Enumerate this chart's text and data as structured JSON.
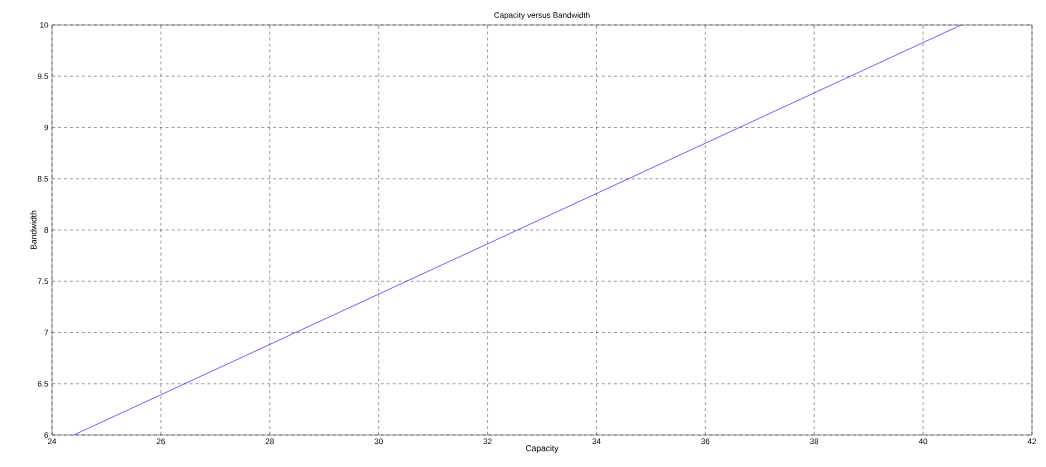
{
  "chart_data": {
    "type": "line",
    "title": "Capacity versus Bandwidth",
    "xlabel": "Capacity",
    "ylabel": "Bandwidth",
    "x": [
      24.4,
      40.7
    ],
    "values": [
      6,
      10
    ],
    "color": "#0000ff",
    "xlim": [
      24,
      42
    ],
    "ylim": [
      6,
      10
    ],
    "xticks": [
      24,
      26,
      28,
      30,
      32,
      34,
      36,
      38,
      40,
      42
    ],
    "yticks": [
      6,
      6.5,
      7,
      7.5,
      8,
      8.5,
      9,
      9.5,
      10
    ],
    "grid": true
  }
}
